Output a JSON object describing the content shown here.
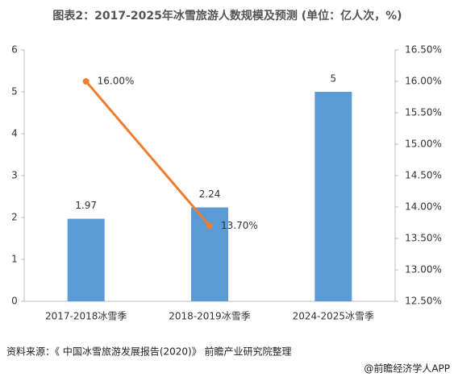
{
  "chart_data": {
    "type": "bar",
    "title": "图表2：2017-2025年冰雪旅游人数规模及预测 (单位：亿人次，%)",
    "categories": [
      "2017-2018冰雪季",
      "2018-2019冰雪季",
      "2024-2025冰雪季"
    ],
    "series": [
      {
        "type": "bar",
        "color": "#5b9bd5",
        "values": [
          1.97,
          2.24,
          5
        ]
      },
      {
        "type": "line",
        "color": "#ed7d31",
        "axis": "y2",
        "values": [
          16.0,
          13.7,
          null
        ],
        "value_labels": [
          "16.00%",
          "13.70%",
          null
        ]
      }
    ],
    "ylim": [
      0,
      6
    ],
    "yticks": [
      0,
      1,
      2,
      3,
      4,
      5,
      6
    ],
    "y2lim": [
      12.5,
      16.5
    ],
    "y2ticks": [
      {
        "value": 12.5,
        "label": "12.50%"
      },
      {
        "value": 13.0,
        "label": "13.00%"
      },
      {
        "value": 13.5,
        "label": "13.50%"
      },
      {
        "value": 14.0,
        "label": "14.00%"
      },
      {
        "value": 14.5,
        "label": "14.50%"
      },
      {
        "value": 15.0,
        "label": "15.00%"
      },
      {
        "value": 15.5,
        "label": "15.50%"
      },
      {
        "value": 16.0,
        "label": "16.00%"
      },
      {
        "value": 16.5,
        "label": "16.50%"
      }
    ],
    "source": "资料来源：《 中国冰雪旅游发展报告(2020)》 前瞻产业研究院整理",
    "footer": "@前瞻经济学人APP"
  }
}
